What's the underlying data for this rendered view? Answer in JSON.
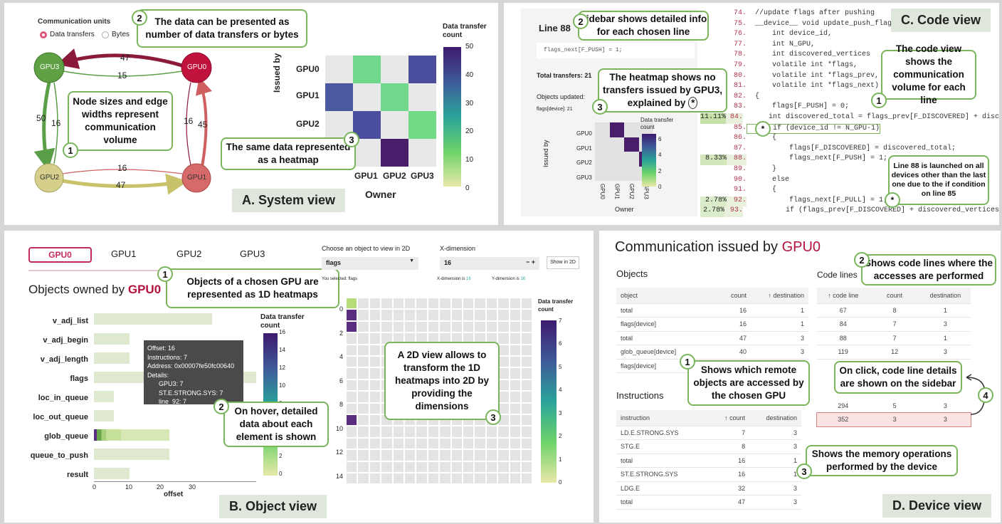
{
  "system_view": {
    "units_title": "Communication units",
    "unit_options": [
      "Data transfers",
      "Bytes"
    ],
    "nodes": [
      "GPU3",
      "GPU0",
      "GPU2",
      "GPU1"
    ],
    "edge_labels": [
      "47",
      "15",
      "50",
      "16",
      "16",
      "45",
      "16",
      "47"
    ],
    "heatmap": {
      "ylabel": "Issued by",
      "xlabel": "Owner",
      "rows": [
        "GPU0",
        "GPU1",
        "GPU2"
      ],
      "cols": [
        "GPU1",
        "GPU2",
        "GPU3"
      ],
      "legend_title": "Data transfer count",
      "legend_ticks": [
        "50",
        "40",
        "30",
        "20",
        "10",
        "0"
      ]
    },
    "callouts": {
      "c2": "The data can be presented as number of data transfers or bytes",
      "c1": "Node sizes and edge widths represent communication volume",
      "c3": "The same data represented as a heatmap"
    },
    "tag": "A. System view"
  },
  "code_view": {
    "sidebar": {
      "line_title": "Line 88",
      "code_snippet": "flags_next[F_PUSH] = 1;",
      "total": "Total transfers: 21",
      "objects_updated": "Objects updated:",
      "object_item": "flags[device]: 21",
      "heatmap_rows": [
        "GPU0",
        "GPU1",
        "GPU2",
        "GPU3"
      ],
      "heatmap_cols": [
        "GPU0",
        "GPU1",
        "GPU2",
        "GPU3"
      ],
      "ylabel": "Issued by",
      "xlabel": "Owner",
      "legend_title": "Data transfer count",
      "legend_ticks": [
        "6",
        "4",
        "2",
        "0"
      ]
    },
    "lines": [
      {
        "no": "74.",
        "pct": "",
        "code": "  //update flags after pushing"
      },
      {
        "no": "75.",
        "pct": "",
        "code": "  __device__ void update_push_flags("
      },
      {
        "no": "76.",
        "pct": "",
        "code": "      int device_id,"
      },
      {
        "no": "77.",
        "pct": "",
        "code": "      int N_GPU,"
      },
      {
        "no": "78.",
        "pct": "",
        "code": "      int discovered_vertices"
      },
      {
        "no": "79.",
        "pct": "",
        "code": "      volatile int *flags,"
      },
      {
        "no": "80.",
        "pct": "",
        "code": "      volatile int *flags_prev,"
      },
      {
        "no": "81.",
        "pct": "",
        "code": "      volatile int *flags_next)"
      },
      {
        "no": "82.",
        "pct": "",
        "code": "  {"
      },
      {
        "no": "83.",
        "pct": "",
        "code": "      flags[F_PUSH] = 0;"
      },
      {
        "no": "84.",
        "pct": "11.11%",
        "code": "      int discovered_total = flags_prev[F_DISCOVERED] + disc"
      },
      {
        "no": "85.",
        "pct": "",
        "code": "      if (device_id != N_GPU-1)"
      },
      {
        "no": "86.",
        "pct": "",
        "code": "      {"
      },
      {
        "no": "87.",
        "pct": "",
        "code": "          flags[F_DISCOVERED] = discovered_total;"
      },
      {
        "no": "88.",
        "pct": "8.33%",
        "code": "          flags_next[F_PUSH] = 1;"
      },
      {
        "no": "89.",
        "pct": "",
        "code": "      }"
      },
      {
        "no": "90.",
        "pct": "",
        "code": "      else"
      },
      {
        "no": "91.",
        "pct": "",
        "code": "      {"
      },
      {
        "no": "92.",
        "pct": "2.78%",
        "code": "          flags_next[F_PULL] = 1;"
      },
      {
        "no": "93.",
        "pct": "2.78%",
        "code": "          if (flags_prev[F_DISCOVERED] + discovered_vertices"
      }
    ],
    "callouts": {
      "c2": "Sidebar shows detailed info for each chosen line",
      "c3": "The heatmap shows no transfers issued by GPU3, explained by",
      "c1": "The code view shows the communication volume for each line",
      "cstar": "Line 88 is launched on all devices other than the last one due to the if condition on line 85"
    },
    "star": "*",
    "tag": "C. Code view"
  },
  "object_view": {
    "tabs": [
      "GPU0",
      "GPU1",
      "GPU2",
      "GPU3"
    ],
    "title_prefix": "Objects owned by",
    "title_gpu": "GPU0",
    "objects": [
      "v_adj_list",
      "v_adj_begin",
      "v_adj_length",
      "flags",
      "loc_in_queue",
      "loc_out_queue",
      "glob_queue",
      "queue_to_push",
      "result"
    ],
    "xaxis_label": "offset",
    "xticks": [
      "0",
      "10",
      "20",
      "30"
    ],
    "legend_title": "Data transfer count",
    "legend_ticks": [
      "16",
      "14",
      "12",
      "10",
      "8",
      "6",
      "4",
      "2",
      "0"
    ],
    "tooltip": [
      "Offset: 16",
      "Instructions: 7",
      "Address: 0x00007fe50fc00640",
      "Details:",
      "GPU3: 7",
      "ST.E.STRONG.SYS: 7",
      "line_92: 7"
    ],
    "choose_label": "Choose an object to view in 2D",
    "choose_value": "flags",
    "xdim_label": "X-dimension",
    "xdim_value": "16",
    "show_btn": "Show in 2D",
    "you_selected": "You selected: flags",
    "xdim_is": "X-dimension is",
    "xdim_is_val": "16",
    "ydim_is": "Y-dimension is",
    "ydim_is_val": "16",
    "grid_yticks": [
      "0",
      "2",
      "4",
      "6",
      "8",
      "10",
      "12",
      "14"
    ],
    "grid_legend_title": "Data transfer count",
    "grid_legend_ticks": [
      "7",
      "6",
      "5",
      "4",
      "3",
      "2",
      "1",
      "0"
    ],
    "callouts": {
      "c1": "Objects of a chosen GPU are represented as 1D heatmaps",
      "c2": "On hover, detailed data about each element is shown",
      "c3": "A 2D view allows to transform the 1D heatmaps into 2D by providing the dimensions"
    },
    "tag": "B. Object view"
  },
  "device_view": {
    "title_prefix": "Communication issued by",
    "title_gpu": "GPU0",
    "objects_heading": "Objects",
    "objects_cols": [
      "object",
      "count",
      "↑ destination"
    ],
    "objects_rows": [
      [
        "total",
        "16",
        "1"
      ],
      [
        "flags[device]",
        "16",
        "1"
      ],
      [
        "total",
        "47",
        "3"
      ],
      [
        "glob_queue[device]",
        "40",
        "3"
      ],
      [
        "flags[device]",
        "",
        ""
      ]
    ],
    "codelines_heading": "Code lines",
    "codelines_cols": [
      "↑ code line",
      "count",
      "destination"
    ],
    "codelines_rows": [
      [
        "67",
        "8",
        "1"
      ],
      [
        "84",
        "7",
        "3"
      ],
      [
        "88",
        "7",
        "1"
      ],
      [
        "119",
        "12",
        "3"
      ]
    ],
    "codelines_rows_bottom": [
      [
        "294",
        "5",
        "3"
      ],
      [
        "352",
        "3",
        "3"
      ]
    ],
    "instructions_heading": "Instructions",
    "instr_cols": [
      "instruction",
      "↑ count",
      "destination"
    ],
    "instr_rows": [
      [
        "LD.E.STRONG.SYS",
        "7",
        "3"
      ],
      [
        "STG.E",
        "8",
        "3"
      ],
      [
        "total",
        "16",
        "1"
      ],
      [
        "ST.E.STRONG.SYS",
        "16",
        "1"
      ],
      [
        "LDG.E",
        "32",
        "3"
      ],
      [
        "total",
        "47",
        "3"
      ]
    ],
    "callouts": {
      "c2": "Shows code lines where the accesses are performed",
      "c1": "Shows which remote objects are accessed by the chosen GPU",
      "c4": "On click, code line details are shown on the sidebar",
      "c3": "Shows the memory operations performed by the device"
    },
    "tag": "D. Device view"
  },
  "colors": {
    "green_border": "#7ab55c",
    "gpu_red": "#b5123e",
    "tag_bg": "#dfe6db"
  }
}
